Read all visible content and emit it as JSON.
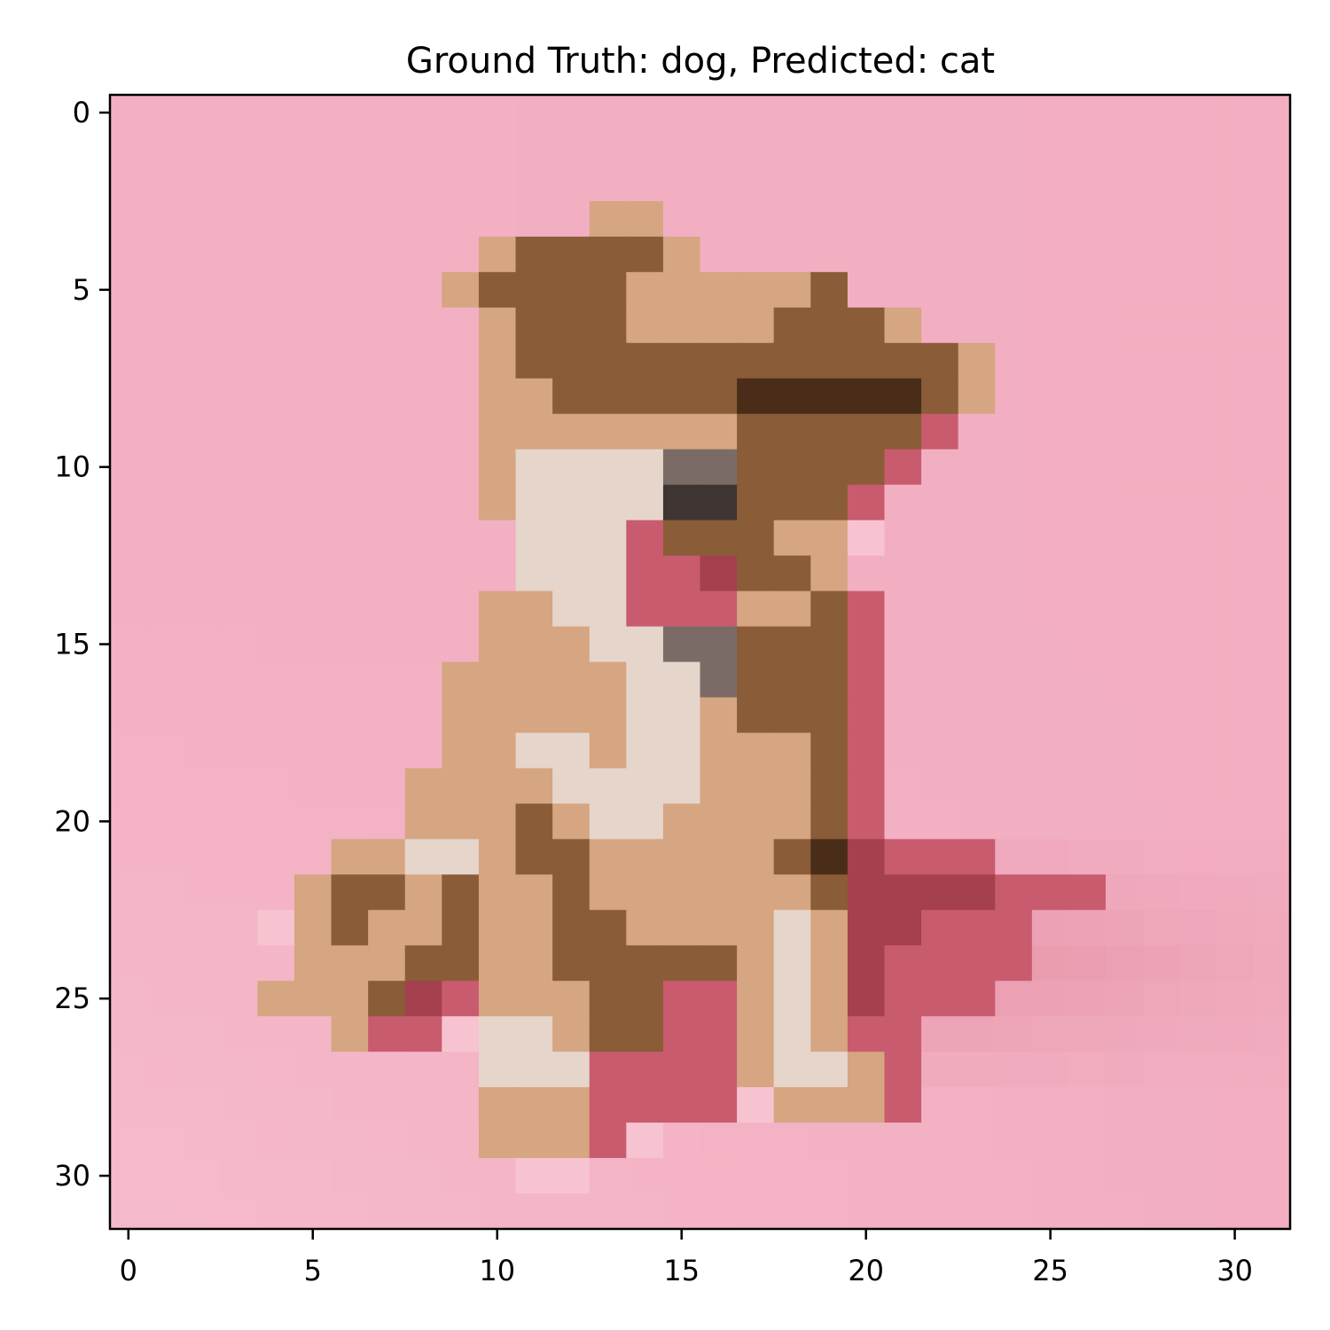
{
  "figure": {
    "title": "Ground Truth: dog, Predicted: cat"
  },
  "chart_data": {
    "type": "heatmap",
    "title": "Ground Truth: dog, Predicted: cat",
    "xlabel": "",
    "ylabel": "",
    "xlim": [
      -0.5,
      31.5
    ],
    "ylim": [
      31.5,
      -0.5
    ],
    "x_ticks": [
      0,
      5,
      10,
      15,
      20,
      25,
      30
    ],
    "y_ticks": [
      0,
      5,
      10,
      15,
      20,
      25,
      30
    ],
    "x_tick_labels": [
      "0",
      "5",
      "10",
      "15",
      "20",
      "25",
      "30"
    ],
    "y_tick_labels": [
      "0",
      "5",
      "10",
      "15",
      "20",
      "25",
      "30"
    ],
    "grid": false,
    "image_size": [
      32,
      32
    ],
    "background_color": "#f2a8bd",
    "image_description_colors": {
      "pink_background": "#f1a7bc",
      "light_pink": "#f7c3d1",
      "tan": "#d6a582",
      "brown": "#8a5c37",
      "dark_brown": "#4a2d18",
      "cream": "#e6d5ca",
      "grey": "#7a6b66",
      "dark": "#3f3533",
      "rose": "#c95b6e",
      "deep_rose": "#a5404f"
    }
  }
}
